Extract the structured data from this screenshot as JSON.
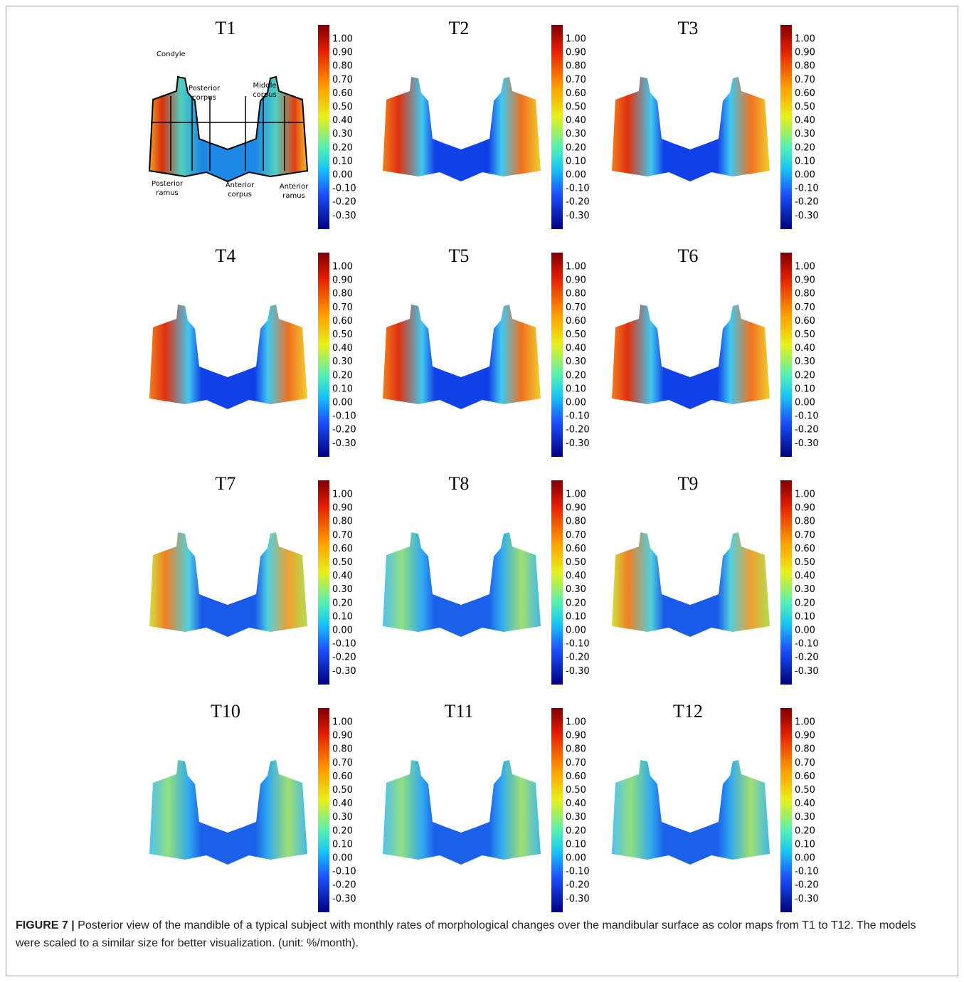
{
  "panels": [
    {
      "title": "T1"
    },
    {
      "title": "T2"
    },
    {
      "title": "T3"
    },
    {
      "title": "T4"
    },
    {
      "title": "T5"
    },
    {
      "title": "T6"
    },
    {
      "title": "T7"
    },
    {
      "title": "T8"
    },
    {
      "title": "T9"
    },
    {
      "title": "T10"
    },
    {
      "title": "T11"
    },
    {
      "title": "T12"
    }
  ],
  "colorbar": {
    "ticks": [
      "1.00",
      "0.90",
      "0.80",
      "0.70",
      "0.60",
      "0.50",
      "0.40",
      "0.30",
      "0.20",
      "0.10",
      "0.00",
      "-0.10",
      "-0.20",
      "-0.30"
    ]
  },
  "annotations": [
    "Condyle",
    "Posterior corpus",
    "Middle corpus",
    "Posterior ramus",
    "Anterior corpus",
    "Anterior ramus"
  ],
  "caption": {
    "label": "FIGURE 7 |",
    "text": "Posterior view of the mandible of a typical subject with monthly rates of morphological changes over the mandibular surface as color maps from T1 to T12. The models were scaled to a similar size for better visualization. (unit: %/month)."
  }
}
